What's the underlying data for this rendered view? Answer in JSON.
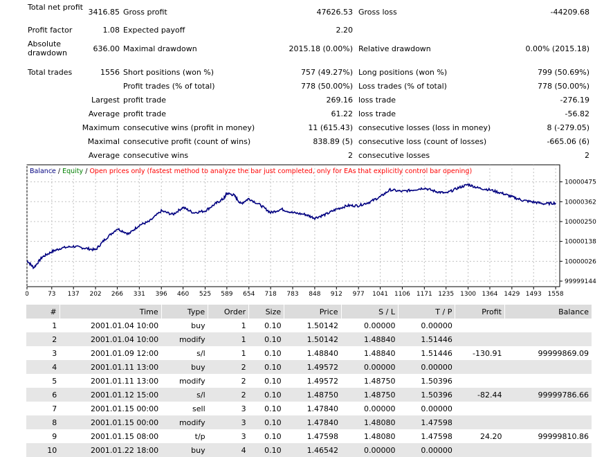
{
  "summary": {
    "r0": {
      "l1": "Total net profit",
      "v1": "3416.85",
      "l2": "Gross profit",
      "v2": "47626.53",
      "l3": "Gross loss",
      "v3": "-44209.68"
    },
    "r1": {
      "l1": "Profit factor",
      "v1": "1.08",
      "l2": "Expected payoff",
      "v2": "2.20"
    },
    "r2": {
      "l1": "Absolute drawdown",
      "v1": "636.00",
      "l2": "Maximal drawdown",
      "v2": "2015.18 (0.00%)",
      "l3": "Relative drawdown",
      "v3": "0.00% (2015.18)"
    },
    "r3": {
      "l1": "Total trades",
      "v1": "1556",
      "l2": "Short positions (won %)",
      "v2": "757 (49.27%)",
      "l3": "Long positions (won %)",
      "v3": "799 (50.69%)"
    },
    "r4": {
      "l2": "Profit trades (% of total)",
      "v2": "778 (50.00%)",
      "l3": "Loss trades (% of total)",
      "v3": "778 (50.00%)"
    },
    "r5": {
      "v1": "Largest",
      "l2": "profit trade",
      "v2": "269.16",
      "l3": "loss trade",
      "v3": "-276.19"
    },
    "r6": {
      "v1": "Average",
      "l2": "profit trade",
      "v2": "61.22",
      "l3": "loss trade",
      "v3": "-56.82"
    },
    "r7": {
      "v1": "Maximum",
      "l2": "consecutive wins (profit in money)",
      "v2": "11 (615.43)",
      "l3": "consecutive losses (loss in money)",
      "v3": "8 (-279.05)"
    },
    "r8": {
      "v1": "Maximal",
      "l2": "consecutive profit (count of wins)",
      "v2": "838.89 (5)",
      "l3": "consecutive loss (count of losses)",
      "v3": "-665.06 (6)"
    },
    "r9": {
      "v1": "Average",
      "l2": "consecutive wins",
      "v2": "2",
      "l3": "consecutive losses",
      "v3": "2"
    }
  },
  "chart_data": {
    "type": "line",
    "legend": {
      "balance": "Balance",
      "equity": "Equity",
      "note": "Open prices only (fastest method to analyze the bar just completed, only for EAs that explicitly control bar opening)"
    },
    "colors": {
      "balance": "#000080",
      "equity": "#008000",
      "note": "#ff0000",
      "grid": "#c0c0c0"
    },
    "x_ticks": [
      0,
      73,
      137,
      202,
      266,
      331,
      396,
      460,
      525,
      589,
      654,
      718,
      783,
      848,
      912,
      977,
      1041,
      1106,
      1171,
      1235,
      1300,
      1364,
      1429,
      1493,
      1558
    ],
    "y_ticks": [
      99999144,
      10000026,
      10000138,
      10000250,
      10000362,
      10000475
    ],
    "y_tick_labels": [
      "99999144",
      "10000026",
      "10000138",
      "10000250",
      "10000362",
      "10000475"
    ],
    "xlim": [
      0,
      1570
    ],
    "ylim": [
      99999140,
      10000520
    ],
    "series": [
      {
        "name": "Balance",
        "x": [
          0,
          20,
          45,
          73,
          100,
          137,
          170,
          202,
          230,
          266,
          300,
          331,
          360,
          396,
          430,
          460,
          490,
          525,
          555,
          580,
          589,
          610,
          630,
          654,
          690,
          718,
          750,
          783,
          820,
          848,
          880,
          912,
          945,
          977,
          1010,
          1041,
          1070,
          1106,
          1140,
          1171,
          1205,
          1235,
          1270,
          1300,
          1330,
          1364,
          1400,
          1429,
          1460,
          1493,
          1525,
          1558
        ],
        "y": [
          10000030,
          9999990,
          10000050,
          10000080,
          10000100,
          10000110,
          10000100,
          10000090,
          10000150,
          10000210,
          10000180,
          10000230,
          10000250,
          10000310,
          10000290,
          10000330,
          10000300,
          10000310,
          10000350,
          10000380,
          10000410,
          10000400,
          10000350,
          10000380,
          10000340,
          10000300,
          10000320,
          10000300,
          10000290,
          10000270,
          10000290,
          10000320,
          10000340,
          10000340,
          10000360,
          10000390,
          10000430,
          10000420,
          10000430,
          10000440,
          10000420,
          10000410,
          10000440,
          10000460,
          10000440,
          10000430,
          10000410,
          10000390,
          10000370,
          10000360,
          10000350,
          10000355
        ]
      }
    ]
  },
  "table": {
    "headers": {
      "num": "#",
      "time": "Time",
      "type": "Type",
      "order": "Order",
      "size": "Size",
      "price": "Price",
      "sl": "S / L",
      "tp": "T / P",
      "profit": "Profit",
      "balance": "Balance"
    },
    "rows": [
      {
        "num": "1",
        "time": "2001.01.04 10:00",
        "type": "buy",
        "order": "1",
        "size": "0.10",
        "price": "1.50142",
        "sl": "0.00000",
        "tp": "0.00000",
        "profit": "",
        "balance": ""
      },
      {
        "num": "2",
        "time": "2001.01.04 10:00",
        "type": "modify",
        "order": "1",
        "size": "0.10",
        "price": "1.50142",
        "sl": "1.48840",
        "tp": "1.51446",
        "profit": "",
        "balance": ""
      },
      {
        "num": "3",
        "time": "2001.01.09 12:00",
        "type": "s/l",
        "order": "1",
        "size": "0.10",
        "price": "1.48840",
        "sl": "1.48840",
        "tp": "1.51446",
        "profit": "-130.91",
        "balance": "99999869.09"
      },
      {
        "num": "4",
        "time": "2001.01.11 13:00",
        "type": "buy",
        "order": "2",
        "size": "0.10",
        "price": "1.49572",
        "sl": "0.00000",
        "tp": "0.00000",
        "profit": "",
        "balance": ""
      },
      {
        "num": "5",
        "time": "2001.01.11 13:00",
        "type": "modify",
        "order": "2",
        "size": "0.10",
        "price": "1.49572",
        "sl": "1.48750",
        "tp": "1.50396",
        "profit": "",
        "balance": ""
      },
      {
        "num": "6",
        "time": "2001.01.12 15:00",
        "type": "s/l",
        "order": "2",
        "size": "0.10",
        "price": "1.48750",
        "sl": "1.48750",
        "tp": "1.50396",
        "profit": "-82.44",
        "balance": "99999786.66"
      },
      {
        "num": "7",
        "time": "2001.01.15 00:00",
        "type": "sell",
        "order": "3",
        "size": "0.10",
        "price": "1.47840",
        "sl": "0.00000",
        "tp": "0.00000",
        "profit": "",
        "balance": ""
      },
      {
        "num": "8",
        "time": "2001.01.15 00:00",
        "type": "modify",
        "order": "3",
        "size": "0.10",
        "price": "1.47840",
        "sl": "1.48080",
        "tp": "1.47598",
        "profit": "",
        "balance": ""
      },
      {
        "num": "9",
        "time": "2001.01.15 08:00",
        "type": "t/p",
        "order": "3",
        "size": "0.10",
        "price": "1.47598",
        "sl": "1.48080",
        "tp": "1.47598",
        "profit": "24.20",
        "balance": "99999810.86"
      },
      {
        "num": "10",
        "time": "2001.01.22 18:00",
        "type": "buy",
        "order": "4",
        "size": "0.10",
        "price": "1.46542",
        "sl": "0.00000",
        "tp": "0.00000",
        "profit": "",
        "balance": ""
      }
    ]
  }
}
